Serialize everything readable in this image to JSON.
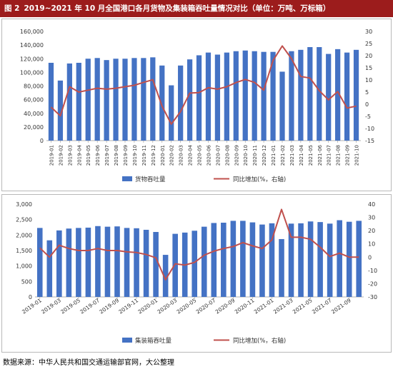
{
  "title": {
    "figure_number": "图 2",
    "text": "2019~2021 年 10 月全国港口各月货物及集装箱吞吐量情况对比（单位：万吨、万标箱）"
  },
  "source": "数据来源：中华人民共和国交通运输部官网，大公整理",
  "colors": {
    "bar": "#4472c4",
    "line": "#c0504d",
    "title_bg": "#9c1c1c"
  },
  "chart_data": [
    {
      "type": "bar",
      "categories": [
        "2019-01",
        "2019-02",
        "2019-03",
        "2019-04",
        "2019-05",
        "2019-06",
        "2019-07",
        "2019-08",
        "2019-09",
        "2019-10",
        "2019-11",
        "2019-12",
        "2020-01",
        "2020-02",
        "2020-03",
        "2020-04",
        "2020-05",
        "2020-06",
        "2020-07",
        "2020-08",
        "2020-09",
        "2020-10",
        "2020-11",
        "2020-12",
        "2021-01",
        "2021-02",
        "2021-03",
        "2021-04",
        "2021-05",
        "2021-06",
        "2021-07",
        "2021-08",
        "2021-09",
        "2021-10"
      ],
      "series": [
        {
          "name": "货物吞吐量",
          "type": "bar",
          "axis": "left",
          "values": [
            114000,
            88000,
            113000,
            114000,
            120000,
            121000,
            118000,
            120000,
            120000,
            121000,
            121000,
            122000,
            110000,
            81000,
            110000,
            119000,
            125000,
            129000,
            126000,
            129000,
            131000,
            132000,
            131000,
            130000,
            130000,
            101000,
            131000,
            133000,
            137000,
            137000,
            127000,
            134000,
            129000,
            133000
          ]
        },
        {
          "name": "同比增加(%，右轴)",
          "type": "line",
          "axis": "right",
          "values": [
            -1.2,
            -4.8,
            7.2,
            5.0,
            5.8,
            6.6,
            6.2,
            6.6,
            7.2,
            7.8,
            9.0,
            10.1,
            -0.8,
            -8.2,
            -3.1,
            4.6,
            4.8,
            6.8,
            6.2,
            7.2,
            8.9,
            10.2,
            9.0,
            5.8,
            18.0,
            24.0,
            18.8,
            11.4,
            10.8,
            5.6,
            1.8,
            5.2,
            -1.6,
            -0.8
          ]
        }
      ],
      "yaxis_left": {
        "min": 0,
        "max": 160000,
        "step": 20000,
        "ticks": [
          "0",
          "20,000",
          "40,000",
          "60,000",
          "80,000",
          "100,000",
          "120,000",
          "140,000",
          "160,000"
        ]
      },
      "yaxis_right": {
        "min": -15,
        "max": 30,
        "step": 5,
        "ticks": [
          "-15",
          "-10",
          "-5",
          "0",
          "5",
          "10",
          "15",
          "20",
          "25",
          "30"
        ]
      },
      "legend": {
        "position": "bottom",
        "items": [
          "货物吞吐量",
          "同比增加(%，右轴)"
        ]
      },
      "grid": false
    },
    {
      "type": "bar",
      "categories": [
        "2019-01",
        "2019-02",
        "2019-03",
        "2019-04",
        "2019-05",
        "2019-06",
        "2019-07",
        "2019-08",
        "2019-09",
        "2019-10",
        "2019-11",
        "2019-12",
        "2020-01",
        "2020-02",
        "2020-03",
        "2020-04",
        "2020-05",
        "2020-06",
        "2020-07",
        "2020-08",
        "2020-09",
        "2020-10",
        "2020-11",
        "2020-12",
        "2021-01",
        "2021-02",
        "2021-03",
        "2021-04",
        "2021-05",
        "2021-06",
        "2021-07",
        "2021-08",
        "2021-09",
        "2021-10"
      ],
      "x_tick_labels": [
        "2019-01",
        "2019-03",
        "2019-05",
        "2019-07",
        "2019-09",
        "2019-11",
        "2020-01",
        "2020-03",
        "2020-05",
        "2020-07",
        "2020-09",
        "2020-11",
        "2021-01",
        "2021-03",
        "2021-05",
        "2021-07",
        "2021-09"
      ],
      "series": [
        {
          "name": "集装箱吞吐量",
          "type": "bar",
          "axis": "left",
          "values": [
            2230,
            1830,
            2150,
            2210,
            2230,
            2240,
            2290,
            2270,
            2280,
            2230,
            2220,
            2170,
            2100,
            1360,
            2040,
            2080,
            2140,
            2270,
            2390,
            2400,
            2460,
            2460,
            2410,
            2340,
            2380,
            1870,
            2370,
            2380,
            2440,
            2420,
            2370,
            2480,
            2430,
            2460
          ]
        },
        {
          "name": "同比增加(%，右轴)",
          "type": "line",
          "axis": "right",
          "values": [
            7.0,
            0.0,
            9.0,
            6.5,
            5.0,
            5.0,
            6.5,
            5.0,
            5.0,
            4.0,
            3.5,
            2.0,
            -0.5,
            -17.0,
            -5.0,
            -6.0,
            -4.0,
            1.5,
            4.5,
            6.5,
            8.0,
            11.0,
            8.5,
            6.5,
            13.0,
            36.0,
            15.0,
            15.0,
            13.5,
            7.5,
            0.5,
            3.0,
            0.0,
            0.0
          ]
        }
      ],
      "yaxis_left": {
        "min": 0,
        "max": 3000,
        "step": 500,
        "ticks": [
          "0",
          "500",
          "1,000",
          "1,500",
          "2,000",
          "2,500",
          "3,000"
        ]
      },
      "yaxis_right": {
        "min": -30,
        "max": 40,
        "step": 10,
        "ticks": [
          "-30",
          "-20",
          "-10",
          "0",
          "10",
          "20",
          "30",
          "40"
        ]
      },
      "legend": {
        "position": "bottom",
        "items": [
          "集装箱吞吐量",
          "同比增加(%，右轴)"
        ]
      },
      "grid": false
    }
  ]
}
